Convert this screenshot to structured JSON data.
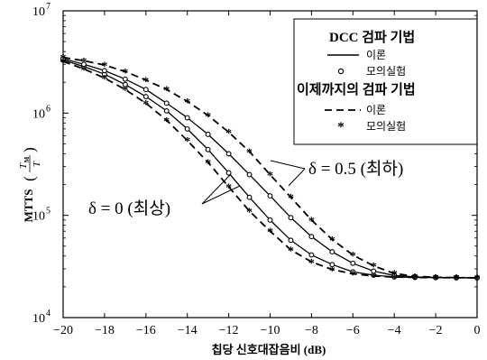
{
  "chart_data": {
    "type": "line",
    "xlabel": "칩당 신호대잡음비 (dB)",
    "ylabel": "MTTS",
    "ylabel_fraction": {
      "numerator": "T",
      "numerator_sub": "M",
      "denominator": "T"
    },
    "xlim": [
      -20,
      0
    ],
    "ylim_exponent": [
      4,
      7
    ],
    "y_scale": "log",
    "x_ticks": [
      -20,
      -18,
      -16,
      -14,
      -12,
      -10,
      -8,
      -6,
      -4,
      -2,
      0
    ],
    "x_tick_labels": [
      "−20",
      "−18",
      "−16",
      "−14",
      "−12",
      "−10",
      "−8",
      "−6",
      "−4",
      "−2",
      "0"
    ],
    "y_ticks_exponent": [
      4,
      5,
      6,
      7
    ],
    "y_tick_base": "10",
    "y_tick_exponent_labels": [
      "4",
      "5",
      "6",
      "7"
    ],
    "grid": false,
    "legend": {
      "placement": "top-right",
      "group1_title": "DCC 검파 기법",
      "group2_title": "이제까지의 검파 기법",
      "theory_label": "이론",
      "sim_label": "모의실험"
    },
    "annotations": {
      "best": "δ = 0 (최상)",
      "worst": "δ = 0.5 (최하)"
    },
    "series_x": [
      -20,
      -19,
      -18,
      -17,
      -16,
      -15,
      -14,
      -13,
      -12,
      -11,
      -10,
      -9,
      -8,
      -7,
      -6,
      -5,
      -4,
      -3,
      -2,
      -1,
      0
    ],
    "series": [
      {
        "group": "dcc",
        "case": "best",
        "style": "solid",
        "marker": "circle",
        "y": [
          3300000,
          2850000,
          2400000,
          1900000,
          1450000,
          1050000,
          700000,
          440000,
          260000,
          150000,
          90000,
          57000,
          41000,
          33000,
          28000,
          26000,
          25000,
          24700,
          24600,
          24500,
          24500
        ]
      },
      {
        "group": "dcc",
        "case": "worst",
        "style": "solid",
        "marker": "circle",
        "y": [
          3400000,
          3000000,
          2600000,
          2150000,
          1700000,
          1250000,
          900000,
          620000,
          400000,
          250000,
          155000,
          95000,
          62000,
          44000,
          34000,
          28500,
          25800,
          25000,
          24700,
          24600,
          24500
        ]
      },
      {
        "group": "conv",
        "case": "best",
        "style": "dashed",
        "marker": "star",
        "y": [
          3200000,
          2700000,
          2200000,
          1700000,
          1250000,
          850000,
          540000,
          330000,
          190000,
          110000,
          70000,
          46000,
          35000,
          29500,
          26800,
          25500,
          24900,
          24700,
          24600,
          24500,
          24500
        ]
      },
      {
        "group": "conv",
        "case": "worst",
        "style": "dashed",
        "marker": "star",
        "y": [
          3500000,
          3250000,
          2950000,
          2550000,
          2100000,
          1700000,
          1300000,
          950000,
          650000,
          420000,
          250000,
          150000,
          90000,
          58000,
          41000,
          32000,
          27000,
          25300,
          24800,
          24600,
          24500
        ]
      }
    ]
  }
}
